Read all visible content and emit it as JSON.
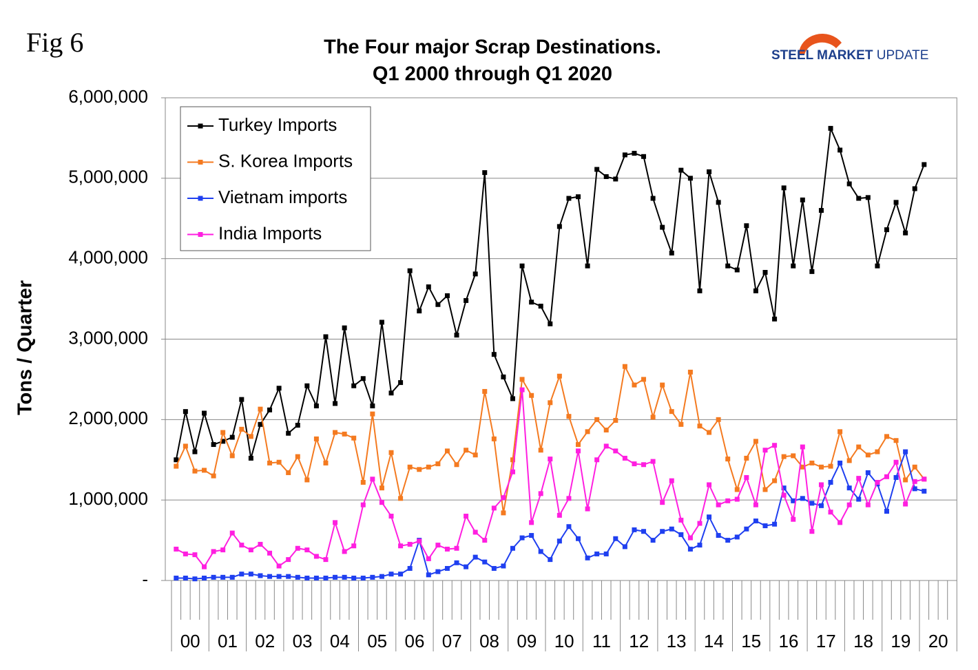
{
  "fig_label": "Fig 6",
  "logo": {
    "primary": "STEEL MARKET",
    "secondary": "UPDATE"
  },
  "chart_data": {
    "type": "line",
    "title": "The Four major Scrap Destinations.",
    "subtitle": "Q1 2000 through Q1 2020",
    "y_label": "Tons / Quarter",
    "legend": "upper left",
    "grid": true,
    "ylim": [
      0,
      6000000
    ],
    "yticks": [
      {
        "value": 0,
        "label": "-"
      },
      {
        "value": 1000000,
        "label": "1,000,000"
      },
      {
        "value": 2000000,
        "label": "2,000,000"
      },
      {
        "value": 3000000,
        "label": "3,000,000"
      },
      {
        "value": 4000000,
        "label": "4,000,000"
      },
      {
        "value": 5000000,
        "label": "5,000,000"
      },
      {
        "value": 6000000,
        "label": "6,000,000"
      }
    ],
    "categories": [
      "00",
      null,
      null,
      null,
      "01",
      null,
      null,
      null,
      "02",
      null,
      null,
      null,
      "03",
      null,
      null,
      null,
      "04",
      null,
      null,
      null,
      "05",
      null,
      null,
      null,
      "06",
      null,
      null,
      null,
      "07",
      null,
      null,
      null,
      "08",
      null,
      null,
      null,
      "09",
      null,
      null,
      null,
      "10",
      null,
      null,
      null,
      "11",
      null,
      null,
      null,
      "12",
      null,
      null,
      null,
      "13",
      null,
      null,
      null,
      "14",
      null,
      null,
      null,
      "15",
      null,
      null,
      null,
      "16",
      null,
      null,
      null,
      "17",
      null,
      null,
      null,
      "18",
      null,
      null,
      null,
      "19",
      null,
      null,
      null,
      "20"
    ],
    "series": [
      {
        "name": "Turkey Imports",
        "color": "#000000",
        "values": [
          1500000,
          2100000,
          1600000,
          2080000,
          1690000,
          1730000,
          1780000,
          2250000,
          1520000,
          1940000,
          2120000,
          2390000,
          1830000,
          1930000,
          2420000,
          2170000,
          3030000,
          2200000,
          3140000,
          2420000,
          2510000,
          2170000,
          3210000,
          2330000,
          2460000,
          3850000,
          3350000,
          3650000,
          3430000,
          3540000,
          3050000,
          3480000,
          3810000,
          5070000,
          2810000,
          2530000,
          2260000,
          3910000,
          3460000,
          3410000,
          3190000,
          4400000,
          4750000,
          4770000,
          3910000,
          5110000,
          5020000,
          4990000,
          5290000,
          5310000,
          5270000,
          4750000,
          4390000,
          4070000,
          5100000,
          5000000,
          3600000,
          5080000,
          4700000,
          3910000,
          3860000,
          4410000,
          3600000,
          3830000,
          3250000,
          4880000,
          3910000,
          4730000,
          3840000,
          4600000,
          5620000,
          5350000,
          4930000,
          4750000,
          4760000,
          3910000,
          4360000,
          4700000,
          4320000,
          4870000,
          5170000
        ]
      },
      {
        "name": "S. Korea Imports",
        "color": "#f47a20",
        "values": [
          1420000,
          1670000,
          1360000,
          1370000,
          1300000,
          1840000,
          1550000,
          1880000,
          1790000,
          2130000,
          1460000,
          1470000,
          1340000,
          1540000,
          1250000,
          1760000,
          1460000,
          1840000,
          1820000,
          1770000,
          1220000,
          2070000,
          1150000,
          1590000,
          1020000,
          1410000,
          1380000,
          1410000,
          1450000,
          1610000,
          1440000,
          1620000,
          1560000,
          2350000,
          1760000,
          840000,
          1500000,
          2500000,
          2300000,
          1620000,
          2210000,
          2540000,
          2040000,
          1690000,
          1850000,
          2000000,
          1870000,
          1990000,
          2660000,
          2430000,
          2500000,
          2030000,
          2430000,
          2100000,
          1940000,
          2590000,
          1920000,
          1840000,
          2000000,
          1510000,
          1130000,
          1520000,
          1730000,
          1130000,
          1240000,
          1540000,
          1550000,
          1410000,
          1460000,
          1410000,
          1420000,
          1850000,
          1490000,
          1660000,
          1560000,
          1600000,
          1790000,
          1740000,
          1250000,
          1410000,
          1260000
        ]
      },
      {
        "name": "Vietnam imports",
        "color": "#1f3ff0",
        "values": [
          30000,
          30000,
          20000,
          30000,
          40000,
          40000,
          40000,
          80000,
          80000,
          60000,
          50000,
          50000,
          50000,
          40000,
          30000,
          30000,
          30000,
          40000,
          40000,
          30000,
          30000,
          40000,
          50000,
          80000,
          80000,
          150000,
          500000,
          70000,
          110000,
          150000,
          220000,
          170000,
          290000,
          230000,
          150000,
          180000,
          400000,
          530000,
          560000,
          360000,
          260000,
          490000,
          670000,
          520000,
          280000,
          330000,
          330000,
          520000,
          420000,
          630000,
          610000,
          500000,
          610000,
          640000,
          570000,
          390000,
          440000,
          790000,
          560000,
          500000,
          540000,
          640000,
          740000,
          680000,
          700000,
          1150000,
          990000,
          1020000,
          960000,
          930000,
          1220000,
          1460000,
          1150000,
          1010000,
          1340000,
          1200000,
          860000,
          1280000,
          1600000,
          1140000,
          1110000
        ]
      },
      {
        "name": "India Imports",
        "color": "#ff1fe0",
        "values": [
          390000,
          330000,
          320000,
          170000,
          360000,
          380000,
          590000,
          440000,
          380000,
          450000,
          340000,
          180000,
          260000,
          400000,
          380000,
          300000,
          260000,
          720000,
          360000,
          430000,
          940000,
          1260000,
          970000,
          800000,
          430000,
          450000,
          490000,
          270000,
          440000,
          390000,
          400000,
          800000,
          600000,
          500000,
          900000,
          1030000,
          1350000,
          2370000,
          720000,
          1080000,
          1510000,
          810000,
          1020000,
          1610000,
          890000,
          1500000,
          1670000,
          1610000,
          1520000,
          1450000,
          1440000,
          1480000,
          970000,
          1240000,
          750000,
          530000,
          710000,
          1190000,
          940000,
          990000,
          1010000,
          1280000,
          940000,
          1620000,
          1680000,
          1060000,
          760000,
          1660000,
          610000,
          1190000,
          850000,
          720000,
          940000,
          1270000,
          940000,
          1220000,
          1290000,
          1470000,
          950000,
          1230000,
          1260000
        ]
      }
    ]
  }
}
